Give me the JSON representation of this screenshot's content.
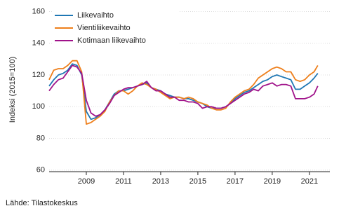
{
  "chart_data": {
    "type": "line",
    "y_label": "Indeksi (2015=100)",
    "source": "Lähde: Tilastokeskus",
    "x": [
      2007,
      2007.25,
      2007.5,
      2007.75,
      2008,
      2008.25,
      2008.5,
      2008.75,
      2009,
      2009.25,
      2009.5,
      2009.75,
      2010,
      2010.25,
      2010.5,
      2010.75,
      2011,
      2011.25,
      2011.5,
      2011.75,
      2012,
      2012.25,
      2012.5,
      2012.75,
      2013,
      2013.25,
      2013.5,
      2013.75,
      2014,
      2014.25,
      2014.5,
      2014.75,
      2015,
      2015.25,
      2015.5,
      2015.75,
      2016,
      2016.25,
      2016.5,
      2016.75,
      2017,
      2017.25,
      2017.5,
      2017.75,
      2018,
      2018.25,
      2018.5,
      2018.75,
      2019,
      2019.25,
      2019.5,
      2019.75,
      2020,
      2020.25,
      2020.5,
      2020.75,
      2021,
      2021.25,
      2021.45
    ],
    "series": [
      {
        "name": "Liikevaihto",
        "color": "#1f77b4",
        "values": [
          113,
          117,
          120,
          121,
          123,
          127,
          126,
          120,
          97,
          92,
          93,
          95,
          98,
          103,
          108,
          110,
          110,
          111,
          112,
          113,
          114,
          115,
          112,
          111,
          110,
          108,
          107,
          106,
          106,
          105,
          105,
          104,
          103,
          102,
          100,
          99,
          99,
          99,
          100,
          102,
          105,
          107,
          109,
          110,
          112,
          114,
          116,
          117,
          119,
          120,
          119,
          118,
          117,
          111,
          111,
          113,
          115,
          118,
          121
        ]
      },
      {
        "name": "Vientiliikevaihto",
        "color": "#ee7f1b",
        "values": [
          117,
          123,
          124,
          124,
          126,
          129,
          129,
          122,
          89,
          90,
          92,
          94,
          97,
          103,
          107,
          110,
          110,
          108,
          110,
          113,
          115,
          114,
          112,
          111,
          109,
          107,
          105,
          106,
          106,
          105,
          106,
          105,
          103,
          102,
          101,
          99,
          98,
          98,
          99,
          103,
          106,
          108,
          110,
          111,
          114,
          118,
          120,
          122,
          124,
          125,
          124,
          122,
          122,
          117,
          116,
          117,
          120,
          122,
          126
        ]
      },
      {
        "name": "Kotimaan liikevaihto",
        "color": "#a0128a",
        "values": [
          110,
          114,
          117,
          118,
          122,
          126,
          125,
          121,
          104,
          96,
          94,
          95,
          98,
          102,
          107,
          109,
          111,
          112,
          112,
          113,
          114,
          116,
          112,
          110,
          110,
          108,
          106,
          106,
          104,
          104,
          103,
          103,
          102,
          99,
          100,
          100,
          99,
          99,
          100,
          102,
          104,
          106,
          108,
          109,
          111,
          110,
          113,
          114,
          115,
          113,
          114,
          114,
          113,
          105,
          105,
          105,
          106,
          108,
          113
        ]
      }
    ],
    "xlim": [
      2007,
      2022.1
    ],
    "xticks": [
      2009,
      2011,
      2013,
      2015,
      2017,
      2019,
      2021
    ],
    "ylim": [
      59,
      162
    ],
    "yticks": [
      60,
      80,
      100,
      120,
      140,
      160
    ],
    "grid": true,
    "legend": "upper left"
  }
}
